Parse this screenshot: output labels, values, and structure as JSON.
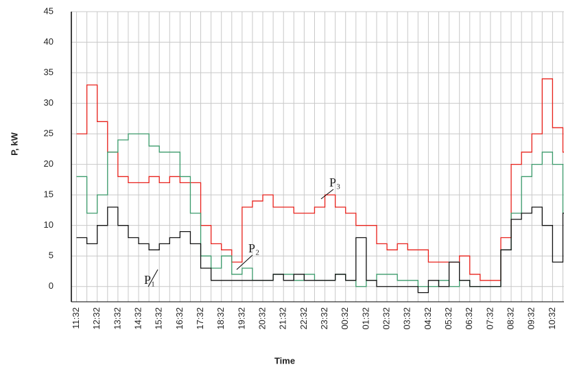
{
  "chart_data": {
    "type": "line",
    "step": true,
    "xlabel": "Time",
    "ylabel": "P, kW",
    "x": [
      0,
      0.5,
      1,
      1.5,
      2,
      2.5,
      3,
      3.5,
      4,
      4.5,
      5,
      5.5,
      6,
      6.5,
      7,
      7.5,
      8,
      8.5,
      9,
      9.5,
      10,
      10.5,
      11,
      11.5,
      12,
      12.5,
      13,
      13.5,
      14,
      14.5,
      15,
      15.5,
      16,
      16.5,
      17,
      17.5,
      18,
      18.5,
      19,
      19.5,
      20,
      20.5,
      21,
      21.5,
      22,
      22.5,
      23,
      23.5
    ],
    "series": [
      {
        "name": "P₃",
        "color": "#e8201a",
        "values": [
          25,
          33,
          27,
          22,
          18,
          17,
          17,
          18,
          17,
          18,
          17,
          17,
          10,
          7,
          6,
          4,
          13,
          14,
          15,
          13,
          13,
          12,
          12,
          13,
          15,
          13,
          12,
          10,
          10,
          7,
          6,
          7,
          6,
          6,
          4,
          4,
          4,
          5,
          2,
          1,
          1,
          8,
          20,
          22,
          25,
          34,
          26,
          22
        ]
      },
      {
        "name": "P₂",
        "color": "#3a9a6a",
        "values": [
          18,
          12,
          15,
          22,
          24,
          25,
          25,
          23,
          22,
          22,
          18,
          12,
          5,
          3,
          5,
          2,
          3,
          1,
          1,
          2,
          2,
          1,
          2,
          1,
          1,
          2,
          1,
          0,
          1,
          2,
          2,
          1,
          1,
          0,
          0,
          1,
          0,
          1,
          0,
          0,
          0,
          6,
          12,
          18,
          20,
          22,
          20,
          12
        ]
      },
      {
        "name": "P₁",
        "color": "#111111",
        "values": [
          8,
          7,
          10,
          13,
          10,
          8,
          7,
          6,
          7,
          8,
          9,
          7,
          3,
          1,
          1,
          1,
          1,
          1,
          1,
          2,
          1,
          2,
          1,
          1,
          1,
          2,
          1,
          8,
          1,
          0,
          0,
          0,
          0,
          -1,
          1,
          0,
          4,
          1,
          0,
          0,
          0,
          6,
          11,
          12,
          13,
          10,
          4,
          12
        ]
      }
    ],
    "xlim": [
      -0.25,
      23.55
    ],
    "ylim": [
      -2.5,
      45
    ],
    "yticks": [
      0,
      5,
      10,
      15,
      20,
      25,
      30,
      35,
      40,
      45
    ],
    "xticks": [
      {
        "value": 0,
        "label": "11:32"
      },
      {
        "value": 1,
        "label": "12:32"
      },
      {
        "value": 2,
        "label": "13:32"
      },
      {
        "value": 3,
        "label": "14:32"
      },
      {
        "value": 4,
        "label": "15:32"
      },
      {
        "value": 5,
        "label": "16:32"
      },
      {
        "value": 6,
        "label": "17:32"
      },
      {
        "value": 7,
        "label": "18:32"
      },
      {
        "value": 8,
        "label": "19:32"
      },
      {
        "value": 9,
        "label": "20:32"
      },
      {
        "value": 10,
        "label": "21:32"
      },
      {
        "value": 11,
        "label": "22:32"
      },
      {
        "value": 12,
        "label": "23:32"
      },
      {
        "value": 13,
        "label": "00:32"
      },
      {
        "value": 14,
        "label": "01:32"
      },
      {
        "value": 15,
        "label": "02:32"
      },
      {
        "value": 16,
        "label": "03:32"
      },
      {
        "value": 17,
        "label": "04:32"
      },
      {
        "value": 18,
        "label": "05:32"
      },
      {
        "value": 19,
        "label": "06:32"
      },
      {
        "value": 20,
        "label": "07:32"
      },
      {
        "value": 21,
        "label": "08:32"
      },
      {
        "value": 22,
        "label": "09:32"
      },
      {
        "value": 23,
        "label": "10:32"
      }
    ],
    "xminorticks": [
      0.5,
      1.5,
      2.5,
      3.5,
      4.5,
      5.5,
      6.5,
      7.5,
      8.5,
      9.5,
      10.5,
      11.5,
      12.5,
      13.5,
      14.5,
      15.5,
      16.5,
      17.5,
      18.5,
      19.5,
      20.5,
      21.5,
      22.5,
      23.5
    ],
    "grid": true
  }
}
